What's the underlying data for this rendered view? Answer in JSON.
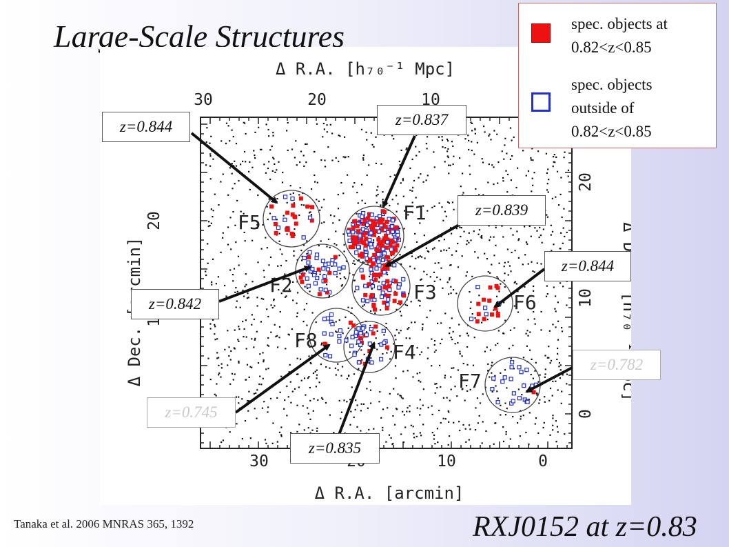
{
  "title": "Large-Scale Structures",
  "bottom_title": "RXJ0152 at z=0.83",
  "citation": "Tanaka et al. 2006 MNRAS 365, 1392",
  "legend": {
    "in_range": "spec. objects at\n0.82<z<0.85",
    "out_of_range": "spec. objects\noutside of\n0.82<z<0.85",
    "in_range_color": "#ee1111",
    "out_of_range_color": "#1f2fd0"
  },
  "redshift_labels": [
    {
      "id": "F5",
      "text": "z=0.844"
    },
    {
      "id": "F1",
      "text": "z=0.837"
    },
    {
      "id": "F3",
      "text": "z=0.839"
    },
    {
      "id": "F6",
      "text": "z=0.844"
    },
    {
      "id": "F2",
      "text": "z=0.842"
    },
    {
      "id": "F7",
      "text": "z=0.782"
    },
    {
      "id": "F8",
      "text": "z=0.745"
    },
    {
      "id": "F4",
      "text": "z=0.835"
    }
  ],
  "figure": {
    "top_axis_label": "Δ R.A.  [h₇₀⁻¹ Mpc]",
    "bottom_axis_label": "Δ R.A.  [arcmin]",
    "left_axis_label": "Δ Dec. [arcmin]",
    "right_axis_label": "Δ Dec. [h₇₀⁻¹ Mpc]",
    "top_ticks": [
      "30",
      "20",
      "10"
    ],
    "bottom_ticks": [
      "30",
      "20",
      "10",
      "0"
    ],
    "left_ticks": [
      "20",
      "10"
    ],
    "right_ticks": [
      "20",
      "10",
      "0"
    ],
    "fields": [
      "F1",
      "F2",
      "F3",
      "F4",
      "F5",
      "F6",
      "F7",
      "F8"
    ]
  }
}
